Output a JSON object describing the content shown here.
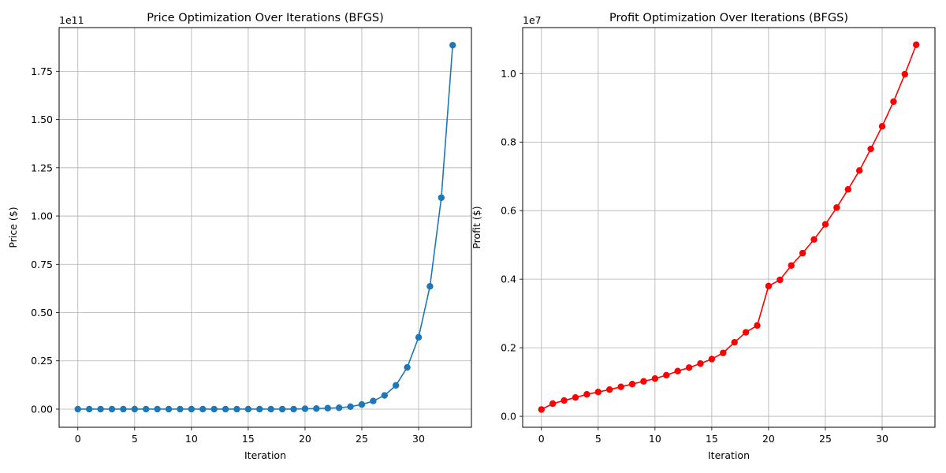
{
  "chart_data": [
    {
      "type": "line",
      "title": "Price Optimization Over Iterations (BFGS)",
      "xlabel": "Iteration",
      "ylabel": "Price ($)",
      "offset_label": "1e11",
      "xlim": [
        -1.65,
        34.65
      ],
      "ylim": [
        -9.4,
        197.6
      ],
      "x_ticks": [
        0,
        5,
        10,
        15,
        20,
        25,
        30
      ],
      "y_ticks": [
        0,
        25,
        50,
        75,
        100,
        125,
        150,
        175
      ],
      "y_tick_labels": [
        "0.00",
        "0.25",
        "0.50",
        "0.75",
        "1.00",
        "1.25",
        "1.50",
        "1.75"
      ],
      "grid": true,
      "marker": "circle",
      "color": "#1f77b4",
      "series": [
        {
          "x": [
            0,
            1,
            2,
            3,
            4,
            5,
            6,
            7,
            8,
            9,
            10,
            11,
            12,
            13,
            14,
            15,
            16,
            17,
            18,
            19,
            20,
            21,
            22,
            23,
            24,
            25,
            26,
            27,
            28,
            29,
            30,
            31,
            32,
            33
          ],
          "values": [
            0,
            0,
            0,
            0,
            0,
            0,
            0,
            0,
            0,
            0,
            0,
            0,
            0,
            0,
            0,
            0,
            0,
            0,
            0,
            0,
            0.2,
            0.3,
            0.5,
            0.7,
            1.3,
            2.4,
            4.2,
            7.1,
            12.3,
            21.6,
            37.2,
            63.6,
            109.5,
            188.5
          ]
        }
      ]
    },
    {
      "type": "line",
      "title": "Profit Optimization Over Iterations (BFGS)",
      "xlabel": "Iteration",
      "ylabel": "Profit ($)",
      "offset_label": "1e7",
      "xlim": [
        -1.65,
        34.65
      ],
      "ylim": [
        -0.32,
        11.34
      ],
      "x_ticks": [
        0,
        5,
        10,
        15,
        20,
        25,
        30
      ],
      "y_ticks": [
        0,
        2,
        4,
        6,
        8,
        10
      ],
      "y_tick_labels": [
        "0.0",
        "0.2",
        "0.4",
        "0.6",
        "0.8",
        "1.0"
      ],
      "grid": true,
      "marker": "circle",
      "color": "#ff0000",
      "series": [
        {
          "x": [
            0,
            1,
            2,
            3,
            4,
            5,
            6,
            7,
            8,
            9,
            10,
            11,
            12,
            13,
            14,
            15,
            16,
            17,
            18,
            19,
            20,
            21,
            22,
            23,
            24,
            25,
            26,
            27,
            28,
            29,
            30,
            31,
            32,
            33
          ],
          "values": [
            0.2,
            0.37,
            0.46,
            0.55,
            0.64,
            0.71,
            0.78,
            0.86,
            0.94,
            1.02,
            1.1,
            1.2,
            1.32,
            1.42,
            1.54,
            1.67,
            1.85,
            2.16,
            2.45,
            2.65,
            3.8,
            3.98,
            4.4,
            4.76,
            5.16,
            5.6,
            6.09,
            6.62,
            7.17,
            7.8,
            8.46,
            9.18,
            9.98,
            10.84
          ]
        }
      ]
    }
  ]
}
